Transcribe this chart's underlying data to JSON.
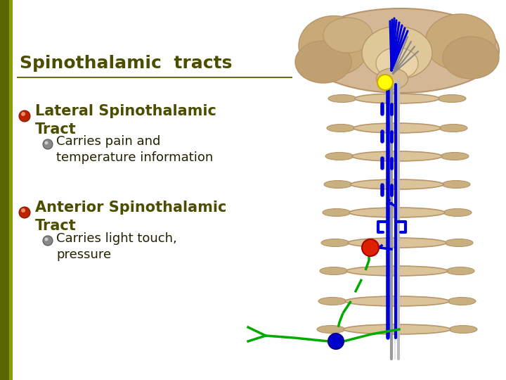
{
  "background_color": "#ffffff",
  "title": "Spinothalamic  tracts",
  "title_color": "#4d4d00",
  "title_fontsize": 18,
  "separator_color": "#6b6b1a",
  "bullet1_text": "Lateral Spinothalamic\nTract",
  "bullet1_color": "#4d4d00",
  "bullet1_fontsize": 15,
  "sub_bullet1_text": "Carries pain and\ntemperature information",
  "sub_bullet1_color": "#222200",
  "sub_bullet1_fontsize": 13,
  "bullet2_text": "Anterior Spinothalamic\nTract",
  "bullet2_color": "#4d4d00",
  "bullet2_fontsize": 15,
  "sub_bullet2_text": "Carries light touch,\npressure",
  "sub_bullet2_color": "#222200",
  "sub_bullet2_fontsize": 13,
  "brain_color": "#d4b896",
  "brain_edge": "#b8956a",
  "vertebra_color": "#dbc49a",
  "vertebra_edge": "#b8956a",
  "blue_tract": "#0000dd",
  "yellow_dot": "#ffff00",
  "red_dot": "#dd2200",
  "blue_dot": "#0000cc",
  "green_line": "#00aa00"
}
